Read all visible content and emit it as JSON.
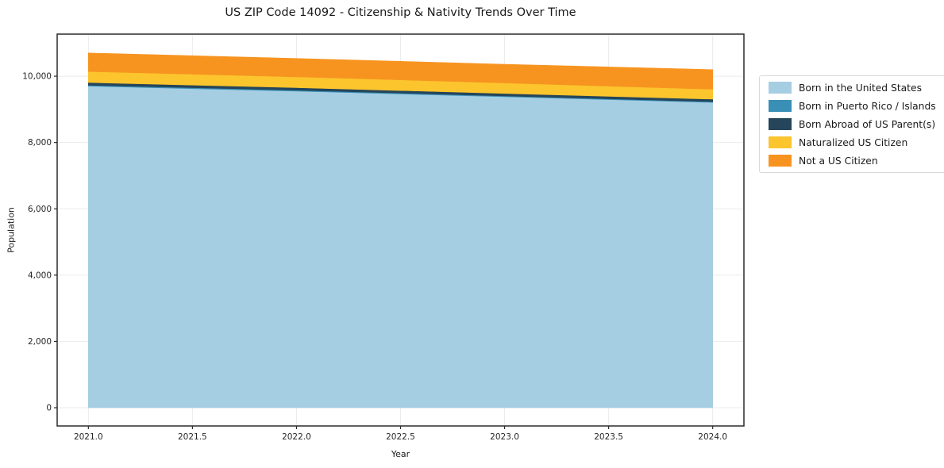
{
  "title": "US ZIP Code 14092 - Citizenship & Nativity Trends Over Time",
  "chart_data": {
    "type": "area",
    "stacked": true,
    "title": "US ZIP Code 14092 - Citizenship & Nativity Trends Over Time",
    "xlabel": "Year",
    "ylabel": "Population",
    "x": [
      2021,
      2022,
      2023,
      2024
    ],
    "series": [
      {
        "name": "Born in the United States",
        "color": "#a6cee3",
        "values": [
          9700,
          9550,
          9380,
          9210
        ]
      },
      {
        "name": "Born in Puerto Rico / Islands",
        "color": "#3a8fb7",
        "values": [
          30,
          28,
          25,
          22
        ]
      },
      {
        "name": "Born Abroad of US Parent(s)",
        "color": "#25455a",
        "values": [
          80,
          78,
          76,
          75
        ]
      },
      {
        "name": "Naturalized US Citizen",
        "color": "#fcc52d",
        "values": [
          330,
          325,
          315,
          300
        ]
      },
      {
        "name": "Not a US Citizen",
        "color": "#f79420",
        "values": [
          560,
          555,
          565,
          590
        ]
      }
    ],
    "totals": [
      10700,
      10536,
      10361,
      10197
    ],
    "xlim": [
      2020.85,
      2024.15
    ],
    "ylim": [
      -550,
      11270
    ],
    "xticks": [
      2021.0,
      2021.5,
      2022.0,
      2022.5,
      2023.0,
      2023.5,
      2024.0
    ],
    "yticks": [
      0,
      2000,
      4000,
      6000,
      8000,
      10000
    ],
    "grid": true,
    "legend_position": "right",
    "frame_color": "#2b2b2b",
    "grid_color": "#ebebeb"
  }
}
